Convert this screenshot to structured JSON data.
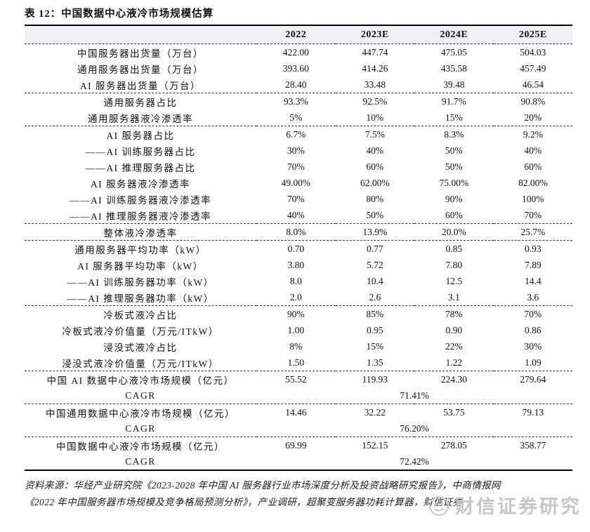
{
  "page": {
    "title": "表 12：中国数据中心液冷市场规模估算"
  },
  "table": {
    "header": {
      "label": "",
      "columns": [
        "2022",
        "2023E",
        "2024E",
        "2025E"
      ]
    },
    "groups": [
      {
        "rows": [
          {
            "label": "中国服务器出货量（万台）",
            "values": [
              "422.00",
              "447.74",
              "475.05",
              "504.03"
            ]
          },
          {
            "label": "通用服务器出货量（万台）",
            "values": [
              "393.60",
              "414.26",
              "435.58",
              "457.49"
            ]
          },
          {
            "label": "AI 服务器出货量（万台）",
            "values": [
              "28.40",
              "33.48",
              "39.48",
              "46.54"
            ]
          }
        ]
      },
      {
        "rows": [
          {
            "label": "通用服务器占比",
            "values": [
              "93.3%",
              "92.5%",
              "91.7%",
              "90.8%"
            ]
          },
          {
            "label": "通用服务器液冷渗透率",
            "values": [
              "5%",
              "10%",
              "15%",
              "20%"
            ]
          }
        ]
      },
      {
        "rows": [
          {
            "label": "AI 服务器占比",
            "values": [
              "6.7%",
              "7.5%",
              "8.3%",
              "9.2%"
            ]
          },
          {
            "label": "——AI 训练服务器占比",
            "values": [
              "30%",
              "40%",
              "50%",
              "40%"
            ]
          },
          {
            "label": "——AI 推理服务器占比",
            "values": [
              "70%",
              "60%",
              "50%",
              "60%"
            ]
          },
          {
            "label": "AI 服务器液冷渗透率",
            "values": [
              "49.00%",
              "62.00%",
              "75.00%",
              "82.00%"
            ]
          },
          {
            "label": "——AI 训练服务器液冷渗透率",
            "values": [
              "70%",
              "80%",
              "90%",
              "100%"
            ]
          },
          {
            "label": "——AI 推理服务器液冷渗透率",
            "values": [
              "40%",
              "50%",
              "60%",
              "70%"
            ]
          }
        ]
      },
      {
        "rows": [
          {
            "label": "整体液冷渗透率",
            "values": [
              "8.0%",
              "13.9%",
              "20.0%",
              "25.7%"
            ]
          }
        ]
      },
      {
        "rows": [
          {
            "label": "通用服务器平均功率（kW）",
            "values": [
              "0.70",
              "0.77",
              "0.85",
              "0.93"
            ]
          },
          {
            "label": "AI 服务器平均功率（kW）",
            "values": [
              "3.80",
              "5.72",
              "7.80",
              "7.89"
            ]
          },
          {
            "label": "——AI 训练服务器功率（kW）",
            "values": [
              "8.0",
              "10.4",
              "12.5",
              "14.4"
            ]
          },
          {
            "label": "——AI 推理服务器功率（kW）",
            "values": [
              "2.0",
              "2.6",
              "3.1",
              "3.6"
            ]
          }
        ]
      },
      {
        "rows": [
          {
            "label": "冷板式液冷占比",
            "values": [
              "90%",
              "85%",
              "78%",
              "70%"
            ]
          },
          {
            "label": "冷板式液冷价值量（万元/ITkW）",
            "values": [
              "1.00",
              "0.95",
              "0.90",
              "0.86"
            ]
          },
          {
            "label": "浸没式液冷占比",
            "values": [
              "8%",
              "15%",
              "22%",
              "30%"
            ]
          },
          {
            "label": "浸没式液冷价值量（万元/ITkW）",
            "values": [
              "1.50",
              "1.35",
              "1.22",
              "1.09"
            ]
          }
        ]
      },
      {
        "rows": [
          {
            "label": "中国 AI 数据中心液冷市场规模（亿元）",
            "values": [
              "55.52",
              "119.93",
              "224.30",
              "279.64"
            ]
          },
          {
            "label": "CAGR",
            "span_value": "71.41%"
          }
        ]
      },
      {
        "rows": [
          {
            "label": "中国通用数据中心液冷市场规模（亿元）",
            "values": [
              "14.46",
              "32.22",
              "53.75",
              "79.13"
            ]
          },
          {
            "label": "CAGR",
            "span_value": "76.20%"
          }
        ]
      },
      {
        "rows": [
          {
            "label": "中国数据中心液冷市场规模（亿元）",
            "values": [
              "69.99",
              "152.15",
              "278.05",
              "358.77"
            ]
          },
          {
            "label": "CAGR",
            "span_value": "72.42%"
          }
        ]
      }
    ]
  },
  "footnote": {
    "lines": [
      "资料来源：华经产业研究院《2023-2028 年中国 AI 服务器行业市场深度分析及投资战略研究报告》，中商情报网",
      "《2022 年中国服务器市场规模及竞争格局预测分析》，产业调研，超聚变服务器功耗计算器，财信证券"
    ]
  },
  "watermark": {
    "icon": "smiley-face",
    "text": "财信证券研究"
  },
  "colors": {
    "header_bg": "#eef1f6",
    "text": "#111111",
    "thick_border": "#000000",
    "divider": "#333333",
    "watermark": "#c6c6c6"
  }
}
